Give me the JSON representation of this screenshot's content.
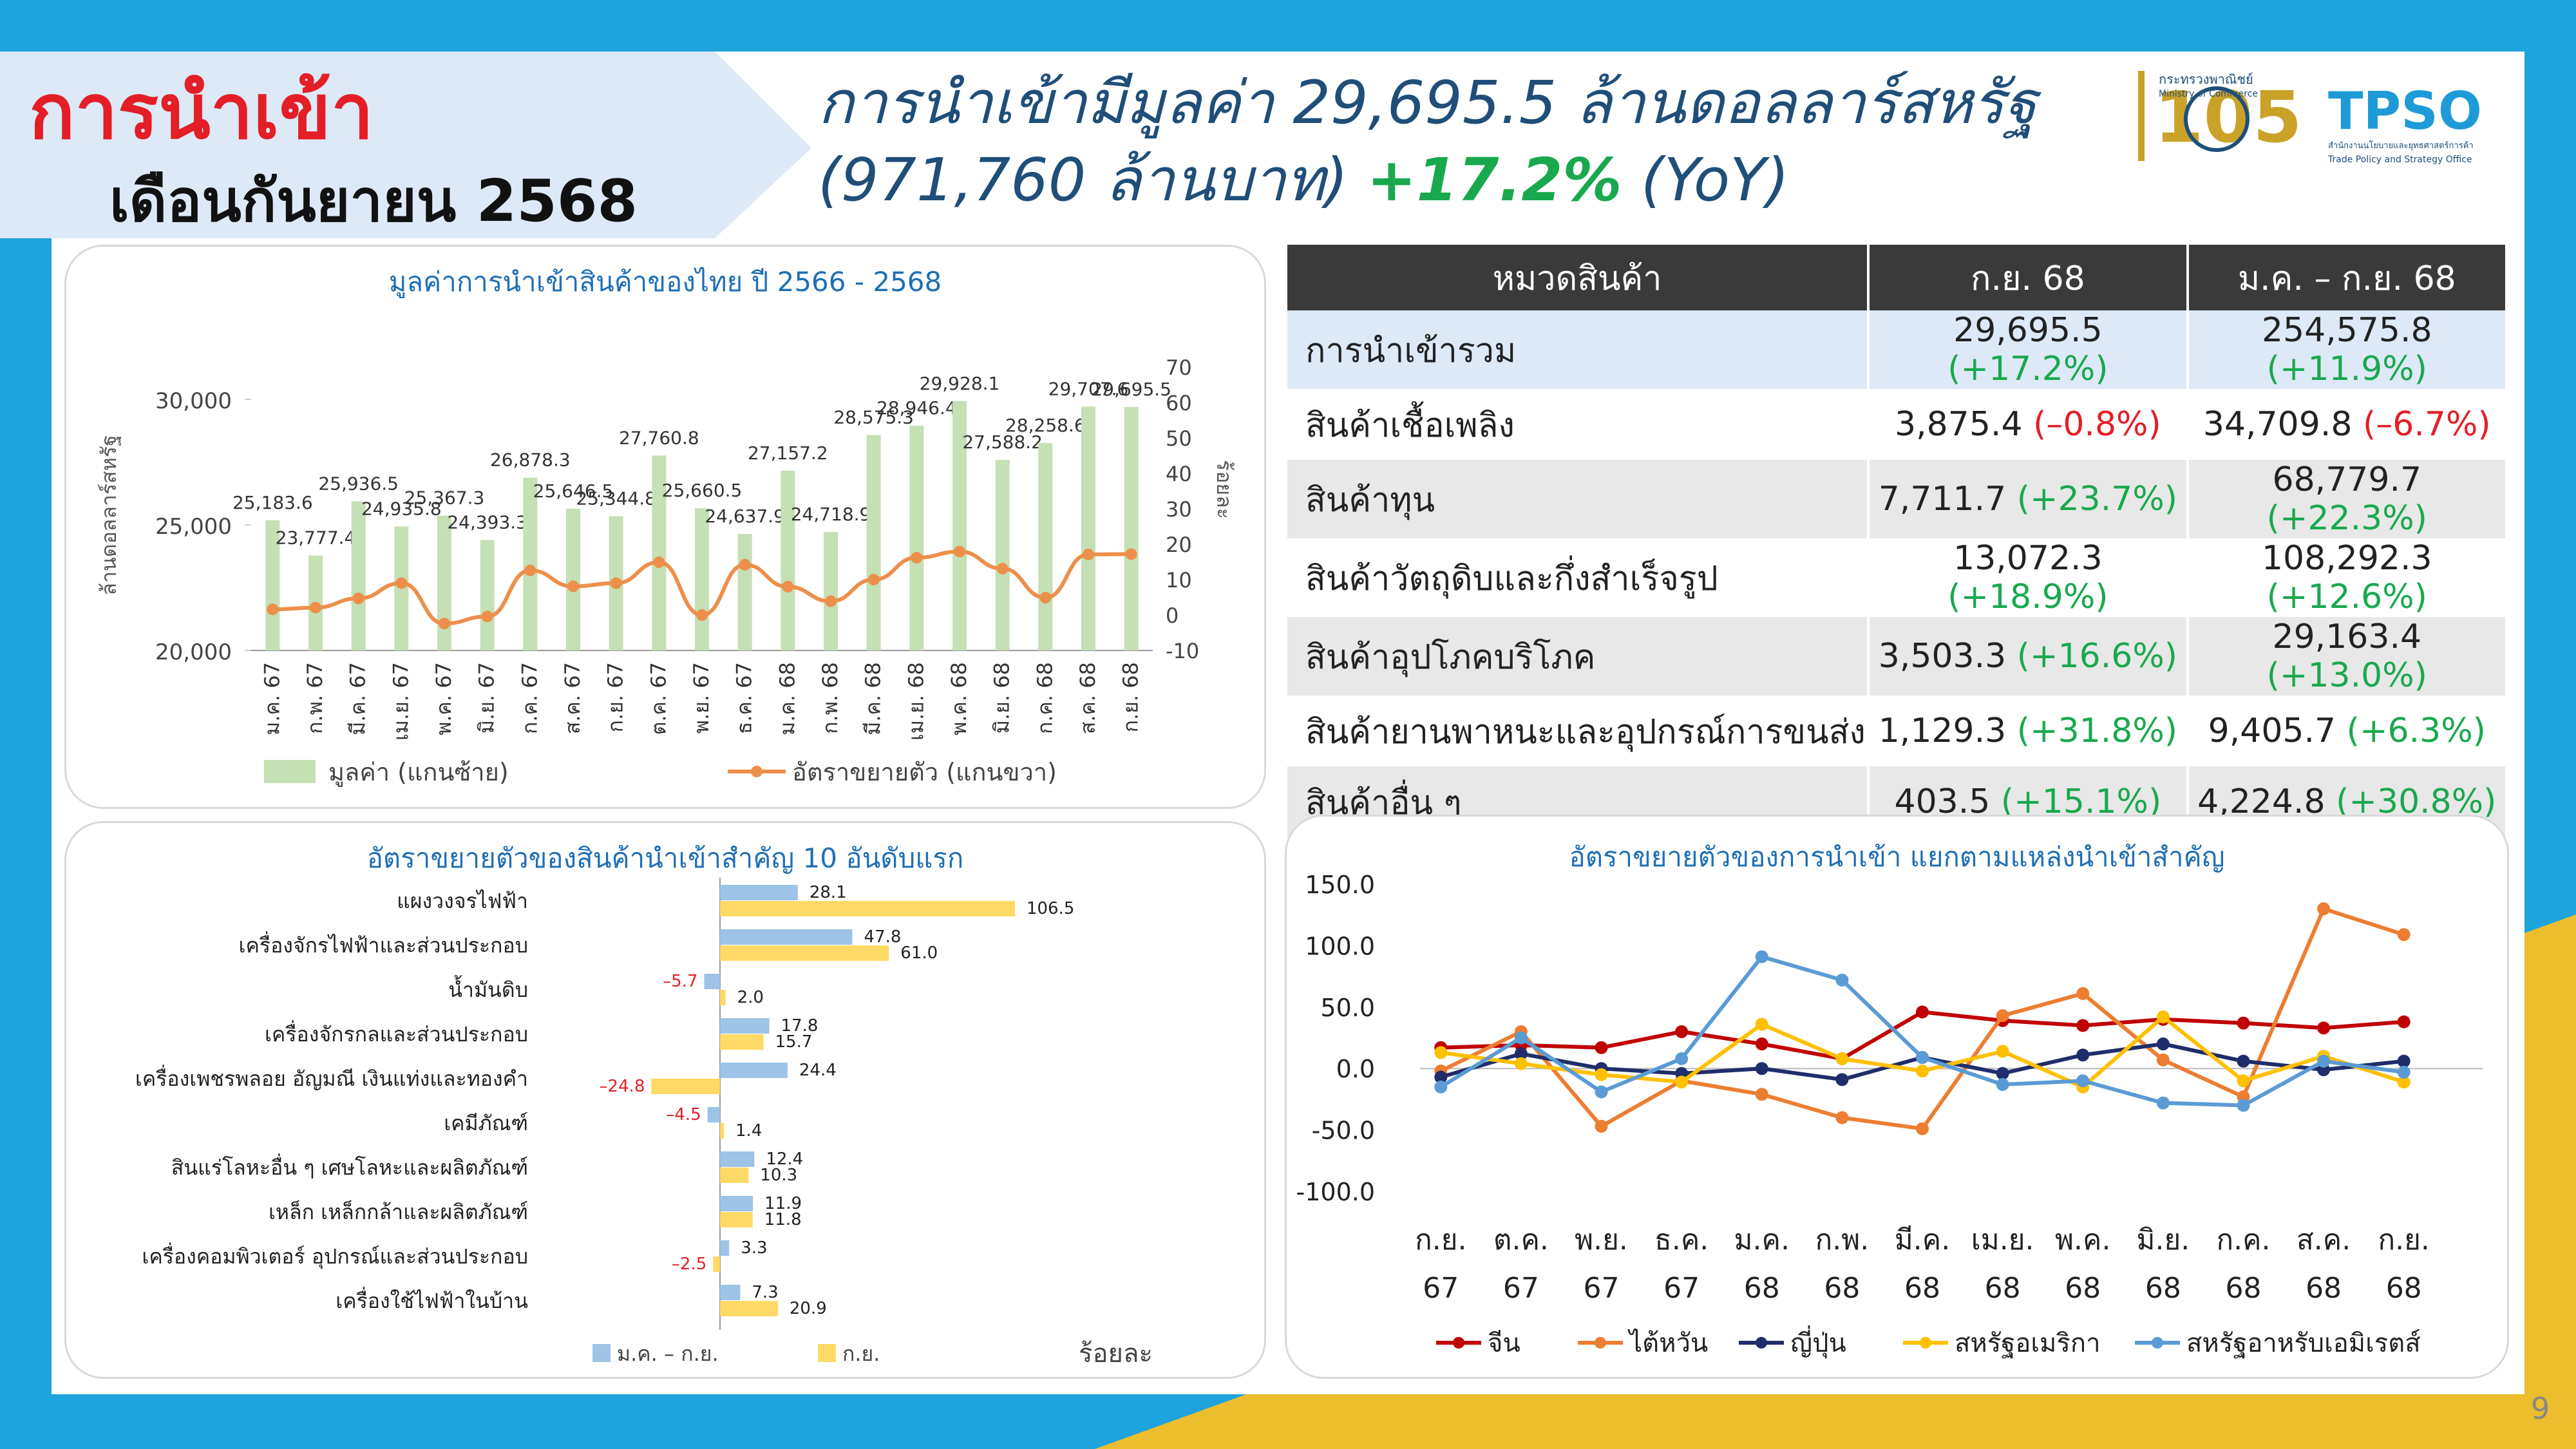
{
  "header": {
    "title_import": "การนำเข้า",
    "title_month": "เดือนกันยายน 2568",
    "headline_line1": "การนำเข้ามีมูลค่า 29,695.5 ล้านดอลลาร์สหรัฐ",
    "headline_line2a": "(971,760 ล้านบาท)",
    "headline_pct": "+17.2%",
    "headline_yoy": "(YoY)"
  },
  "logos": {
    "moc_name": "กระทรวงพาณิชย์",
    "moc_en": "Ministry of Commerce",
    "moc_number": "105",
    "moc_th": "th",
    "tpso_name": "TPSO",
    "tpso_th": "สำนักงานนโยบายและยุทธศาสตร์การค้า",
    "tpso_en": "Trade Policy and Strategy Office"
  },
  "table": {
    "headers": [
      "หมวดสินค้า",
      "ก.ย. 68",
      "ม.ค. – ก.ย.  68"
    ],
    "rows": [
      {
        "name": "การนำเข้ารวม",
        "sep_value": "29,695.5",
        "sep_pct": "(+17.2%)",
        "ytd_value": "254,575.8",
        "ytd_pct": "(+11.9%)",
        "sep_sign": "pos",
        "ytd_sign": "pos"
      },
      {
        "name": "สินค้าเชื้อเพลิง",
        "sep_value": "3,875.4",
        "sep_pct": "(–0.8%)",
        "ytd_value": "34,709.8",
        "ytd_pct": "(–6.7%)",
        "sep_sign": "neg",
        "ytd_sign": "neg"
      },
      {
        "name": "สินค้าทุน",
        "sep_value": "7,711.7",
        "sep_pct": "(+23.7%)",
        "ytd_value": "68,779.7",
        "ytd_pct": "(+22.3%)",
        "sep_sign": "pos",
        "ytd_sign": "pos"
      },
      {
        "name": "สินค้าวัตถุดิบและกึ่งสำเร็จรูป",
        "sep_value": "13,072.3",
        "sep_pct": "(+18.9%)",
        "ytd_value": "108,292.3",
        "ytd_pct": "(+12.6%)",
        "sep_sign": "pos",
        "ytd_sign": "pos"
      },
      {
        "name": "สินค้าอุปโภคบริโภค",
        "sep_value": "3,503.3",
        "sep_pct": "(+16.6%)",
        "ytd_value": "29,163.4",
        "ytd_pct": "(+13.0%)",
        "sep_sign": "pos",
        "ytd_sign": "pos"
      },
      {
        "name": "สินค้ายานพาหนะและอุปกรณ์การขนส่ง",
        "sep_value": "1,129.3",
        "sep_pct": "(+31.8%)",
        "ytd_value": "9,405.7",
        "ytd_pct": "(+6.3%)",
        "sep_sign": "pos",
        "ytd_sign": "pos"
      },
      {
        "name": "สินค้าอื่น ๆ",
        "sep_value": "403.5",
        "sep_pct": "(+15.1%)",
        "ytd_value": "4,224.8",
        "ytd_pct": "(+30.8%)",
        "sep_sign": "pos",
        "ytd_sign": "pos"
      }
    ]
  },
  "page_number": "9",
  "chart_data": [
    {
      "type": "bar",
      "title": "มูลค่าการนำเข้าสินค้าของไทย ปี 2566 - 2568",
      "ylabel": "ล้านดอลลาร์สหรัฐ",
      "y2label": "ร้อยละ",
      "categories": [
        "ม.ค. 67",
        "ก.พ. 67",
        "มี.ค. 67",
        "เม.ย. 67",
        "พ.ค. 67",
        "มิ.ย. 67",
        "ก.ค. 67",
        "ส.ค. 67",
        "ก.ย. 67",
        "ต.ค. 67",
        "พ.ย. 67",
        "ธ.ค. 67",
        "ม.ค. 68",
        "ก.พ. 68",
        "มี.ค. 68",
        "เม.ย. 68",
        "พ.ค. 68",
        "มิ.ย. 68",
        "ก.ค. 68",
        "ส.ค. 68",
        "ก.ย. 68"
      ],
      "values": [
        25183.6,
        23777.4,
        25936.5,
        24935.8,
        25367.3,
        24393.3,
        26878.3,
        25646.5,
        25344.8,
        27760.8,
        25660.5,
        24637.9,
        27157.2,
        24718.9,
        28575.3,
        28946.4,
        29928.1,
        27588.2,
        28258.6,
        29707.6,
        29695.5
      ],
      "labels": [
        "25,183.6",
        "23,777.4",
        "25,936.5",
        "24,935.8",
        "25,367.3",
        "24,393.3",
        "26,878.3",
        "25,646.5",
        "25,344.8",
        "27,760.8",
        "25,660.5",
        "24,637.9",
        "27,157.2",
        "24,718.9",
        "28,575.3",
        "28,946.4",
        "29,928.1",
        "27,588.2",
        "28,258.6",
        "29,707.6",
        "29,695.5"
      ],
      "growth": [
        1.6,
        2.1,
        4.7,
        9.0,
        -2.4,
        -0.4,
        12.6,
        8.1,
        9.0,
        14.9,
        0.0,
        14.2,
        8.0,
        3.9,
        10.0,
        16.2,
        17.9,
        13.1,
        4.9,
        17.1,
        17.2
      ],
      "ylim": [
        20000,
        30000
      ],
      "yticks": [
        "20,000",
        "25,000",
        "30,000"
      ],
      "yticks_values": [
        20000,
        25000,
        30000
      ],
      "y2lim": [
        -10,
        70
      ],
      "y2ticks": [
        "-10",
        "0",
        "10",
        "20",
        "30",
        "40",
        "50",
        "60",
        "70"
      ],
      "y2ticks_values": [
        -10,
        0,
        10,
        20,
        30,
        40,
        50,
        60,
        70
      ],
      "legend": [
        "มูลค่า (แกนซ้าย)",
        "อัตราขยายตัว (แกนขวา)"
      ],
      "colors": {
        "bar": "#c5e0b4",
        "line": "#ed8f4a"
      }
    },
    {
      "type": "bar",
      "title": "อัตราขยายตัวของสินค้านำเข้าสำคัญ 10 อันดับแรก",
      "xlabel": "ร้อยละ",
      "categories": [
        "แผงวงจรไฟฟ้า",
        "เครื่องจักรไฟฟ้าและส่วนประกอบ",
        "น้ำมันดิบ",
        "เครื่องจักรกลและส่วนประกอบ",
        "เครื่องเพชรพลอย อัญมณี เงินแท่งและทองคำ",
        "เคมีภัณฑ์",
        "สินแร่โลหะอื่น ๆ เศษโลหะและผลิตภัณฑ์",
        "เหล็ก เหล็กกล้าและผลิตภัณฑ์",
        "เครื่องคอมพิวเตอร์ อุปกรณ์และส่วนประกอบ",
        "เครื่องใช้ไฟฟ้าในบ้าน"
      ],
      "series": [
        {
          "name": "ม.ค. – ก.ย.",
          "values": [
            28.1,
            47.8,
            -5.7,
            17.8,
            24.4,
            -4.5,
            12.4,
            11.9,
            3.3,
            7.3
          ],
          "labels": [
            "28.1",
            "47.8",
            "–5.7",
            "17.8",
            "24.4",
            "–4.5",
            "12.4",
            "11.9",
            "3.3",
            "7.3"
          ],
          "color": "#9dc3e6"
        },
        {
          "name": "ก.ย.",
          "values": [
            106.5,
            61.0,
            2.0,
            15.7,
            -24.8,
            1.4,
            10.3,
            11.8,
            -2.5,
            20.9
          ],
          "labels": [
            "106.5",
            "61.0",
            "2.0",
            "15.7",
            "–24.8",
            "1.4",
            "10.3",
            "11.8",
            "–2.5",
            "20.9"
          ],
          "color": "#ffd966"
        }
      ],
      "xlim": [
        -30,
        115
      ]
    },
    {
      "type": "line",
      "title": "อัตราขยายตัวของการนำเข้า แยกตามแหล่งนำเข้าสำคัญ",
      "categories_line1": [
        "ก.ย.",
        "ต.ค.",
        "พ.ย.",
        "ธ.ค.",
        "ม.ค.",
        "ก.พ.",
        "มี.ค.",
        "เม.ย.",
        "พ.ค.",
        "มิ.ย.",
        "ก.ค.",
        "ส.ค.",
        "ก.ย."
      ],
      "categories_line2": [
        "67",
        "67",
        "67",
        "67",
        "68",
        "68",
        "68",
        "68",
        "68",
        "68",
        "68",
        "68",
        "68"
      ],
      "ylim": [
        -100,
        150
      ],
      "yticks": [
        "-100.0",
        "-50.0",
        "0.0",
        "50.0",
        "100.0",
        "150.0"
      ],
      "yticks_values": [
        -100,
        -50,
        0,
        50,
        100,
        150
      ],
      "series": [
        {
          "name": "จีน",
          "values": [
            17,
            19,
            17,
            30,
            20,
            8,
            46,
            39,
            35,
            40,
            37,
            33,
            38
          ],
          "color": "#c00000"
        },
        {
          "name": "ไต้หวัน",
          "values": [
            -2,
            30,
            -47,
            -10,
            -21,
            -40,
            -49,
            43,
            61,
            7,
            -23,
            130,
            109
          ],
          "color": "#ed7d31"
        },
        {
          "name": "ญี่ปุ่น",
          "values": [
            -7,
            12,
            0,
            -4,
            0,
            -9,
            9,
            -4,
            11,
            20,
            6,
            -1,
            6
          ],
          "color": "#1f2d6b"
        },
        {
          "name": "สหรัฐอเมริกา",
          "values": [
            13,
            4,
            -5,
            -11,
            36,
            8,
            -2,
            14,
            -15,
            42,
            -10,
            10,
            -11
          ],
          "color": "#ffc000"
        },
        {
          "name": "สหรัฐอาหรับเอมิเรตส์",
          "values": [
            -15,
            25,
            -19,
            8,
            91,
            72,
            9,
            -13,
            -10,
            -28,
            -30,
            6,
            -3
          ],
          "color": "#5b9bd5"
        }
      ]
    }
  ]
}
